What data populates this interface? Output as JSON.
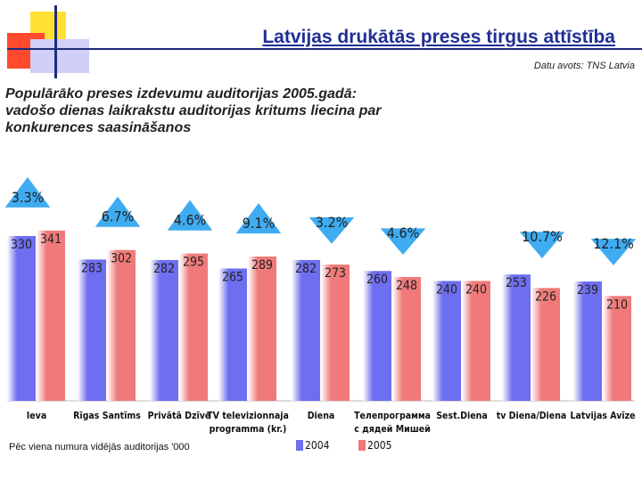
{
  "header": {
    "title": "Latvijas drukātās preses tirgus attīstība",
    "source": "Datu avots: TNS Latvia"
  },
  "subtitle_lines": [
    "Populārāko preses izdevumu auditorijas 2005.gadā:",
    "vadošo dienas laikrakstu auditorijas kritums liecina par",
    "konkurences saasināšanos"
  ],
  "footnote": "Pēc viena numura vidējās auditorijas '000",
  "colors": {
    "series_2004": "#6e6ef0",
    "series_2005": "#f07a7a",
    "badge": "#2aa3f0",
    "title": "#1f2f95"
  },
  "chart_data": {
    "type": "bar",
    "ylabel": "Pēc viena numura vidējās auditorijas '000",
    "ylim": [
      0,
      350
    ],
    "categories": [
      [
        "Ieva"
      ],
      [
        "Rīgas Santīms"
      ],
      [
        "Privātā Dzīve"
      ],
      [
        "TV televizionnaja",
        "programma (kr.)"
      ],
      [
        "Diena"
      ],
      [
        "Телепрограмма",
        "с дядей Мишей"
      ],
      [
        "Sest.Diena"
      ],
      [
        "tv Diena/Diena"
      ],
      [
        "Latvijas Avīze"
      ]
    ],
    "series": [
      {
        "name": "2004",
        "values": [
          330,
          283,
          282,
          265,
          282,
          260,
          240,
          253,
          239
        ]
      },
      {
        "name": "2005",
        "values": [
          341,
          302,
          295,
          289,
          273,
          248,
          240,
          226,
          210
        ]
      }
    ],
    "change_labels": [
      "3.3%",
      "6.7%",
      "4.6%",
      "9.1%",
      "3.2%",
      "4.6%",
      "",
      "10.7%",
      "12.1%"
    ],
    "change_direction": [
      "up",
      "up",
      "up",
      "up",
      "down",
      "down",
      "none",
      "down",
      "down"
    ],
    "legend": [
      "2004",
      "2005"
    ]
  }
}
